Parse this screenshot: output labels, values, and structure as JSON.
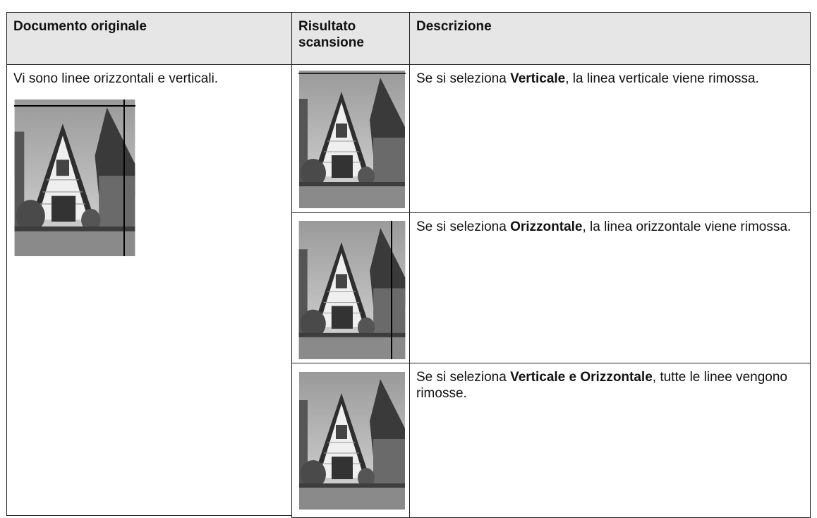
{
  "table": {
    "header": [
      "Documento originale",
      "Risultato scansione",
      "Descrizione"
    ],
    "original_text": "Vi sono linee orizzontali e verticali.",
    "rows": [
      {
        "description": [
          "Se si seleziona ",
          "Verticale",
          ", la linea verticale viene rimossa."
        ]
      },
      {
        "description": [
          "Se si seleziona ",
          "Orizzontale",
          ", la linea orizzontale viene rimossa."
        ]
      },
      {
        "description": [
          "Se si seleziona ",
          "Verticale e Orizzontale",
          ", tutte le linee vengono rimosse."
        ]
      }
    ]
  }
}
